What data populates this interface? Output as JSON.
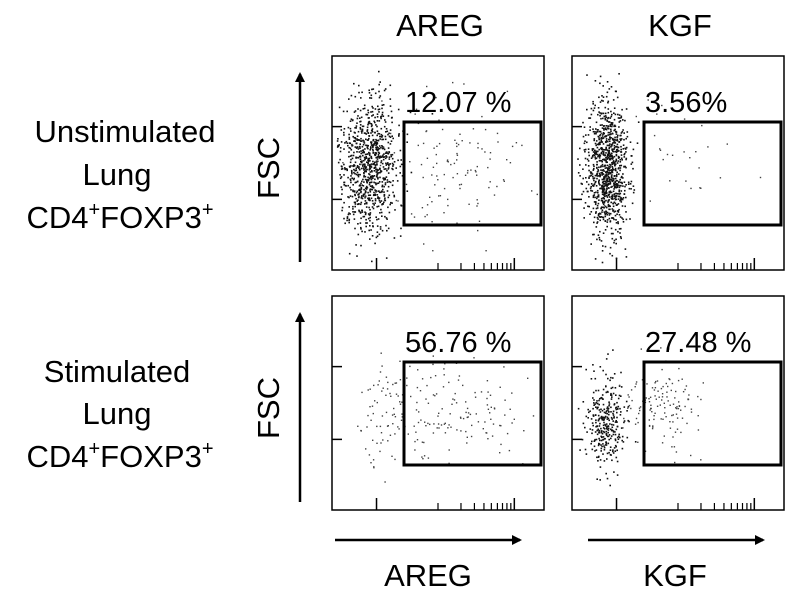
{
  "chart_data": {
    "type": "scatter",
    "figure_kind": "flow cytometry dot plots",
    "columns": [
      "AREG",
      "KGF"
    ],
    "rows": [
      {
        "lines": [
          "Unstimulated",
          "Lung",
          "CD4+FOXP3+"
        ],
        "base": "CD4",
        "sup1": "+",
        "mid": "FOXP3",
        "sup2": "+"
      },
      {
        "lines": [
          "Stimulated",
          "Lung",
          "CD4+FOXP3+"
        ],
        "base": "CD4",
        "sup1": "+",
        "mid": "FOXP3",
        "sup2": "+"
      }
    ],
    "ylabel": "FSC",
    "xlabels": [
      "AREG",
      "KGF"
    ],
    "x_scale": "log",
    "grid": false,
    "panels": [
      {
        "row": 0,
        "col": 0,
        "gate_label": "12.07 %",
        "gate_percent": 12.07,
        "seed": 11,
        "clusters": [
          {
            "cx": 0.17,
            "cy": 0.52,
            "sx": 0.065,
            "sy": 0.16,
            "n": 900
          },
          {
            "cx": 0.55,
            "cy": 0.5,
            "sx": 0.2,
            "sy": 0.16,
            "n": 130
          }
        ]
      },
      {
        "row": 0,
        "col": 1,
        "gate_label": "3.56%",
        "gate_percent": 3.56,
        "seed": 23,
        "clusters": [
          {
            "cx": 0.16,
            "cy": 0.52,
            "sx": 0.05,
            "sy": 0.16,
            "n": 950
          },
          {
            "cx": 0.52,
            "cy": 0.45,
            "sx": 0.18,
            "sy": 0.14,
            "n": 30
          }
        ]
      },
      {
        "row": 1,
        "col": 0,
        "gate_label": "56.76 %",
        "gate_percent": 56.76,
        "seed": 37,
        "clusters": [
          {
            "cx": 0.26,
            "cy": 0.55,
            "sx": 0.06,
            "sy": 0.13,
            "n": 70
          },
          {
            "cx": 0.54,
            "cy": 0.55,
            "sx": 0.17,
            "sy": 0.13,
            "n": 140
          }
        ]
      },
      {
        "row": 1,
        "col": 1,
        "gate_label": "27.48 %",
        "gate_percent": 27.48,
        "seed": 53,
        "clusters": [
          {
            "cx": 0.16,
            "cy": 0.58,
            "sx": 0.05,
            "sy": 0.11,
            "n": 320
          },
          {
            "cx": 0.42,
            "cy": 0.5,
            "sx": 0.1,
            "sy": 0.1,
            "n": 140
          }
        ]
      }
    ]
  }
}
